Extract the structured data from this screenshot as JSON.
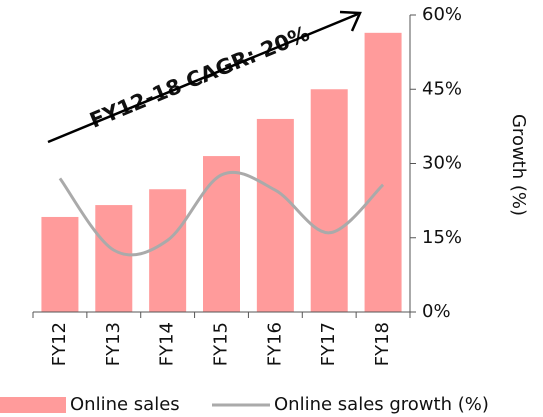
{
  "chart_data": {
    "type": "bar-line",
    "y_axis_label": "Growth (%)",
    "annotation": "FY12-18 CAGR: 20%",
    "categories": [
      "FY12",
      "FY13",
      "FY14",
      "FY15",
      "FY16",
      "FY17",
      "FY18"
    ],
    "series": [
      {
        "name": "Online sales",
        "type": "bar",
        "color": "#ff9b9b",
        "values": [
          19.2,
          21.6,
          24.8,
          31.5,
          39,
          45,
          56.4
        ]
      },
      {
        "name": "Online sales growth (%)",
        "type": "line",
        "color": "#aaaaaa",
        "values": [
          27,
          12.5,
          14.5,
          27.7,
          24.6,
          16,
          25.7
        ]
      }
    ],
    "ylim": [
      0,
      60
    ],
    "yticks": [
      {
        "value": 0,
        "label": "0%"
      },
      {
        "value": 15,
        "label": "15%"
      },
      {
        "value": 30,
        "label": "30%"
      },
      {
        "value": 45,
        "label": "45%"
      },
      {
        "value": 60,
        "label": "60%"
      }
    ]
  }
}
